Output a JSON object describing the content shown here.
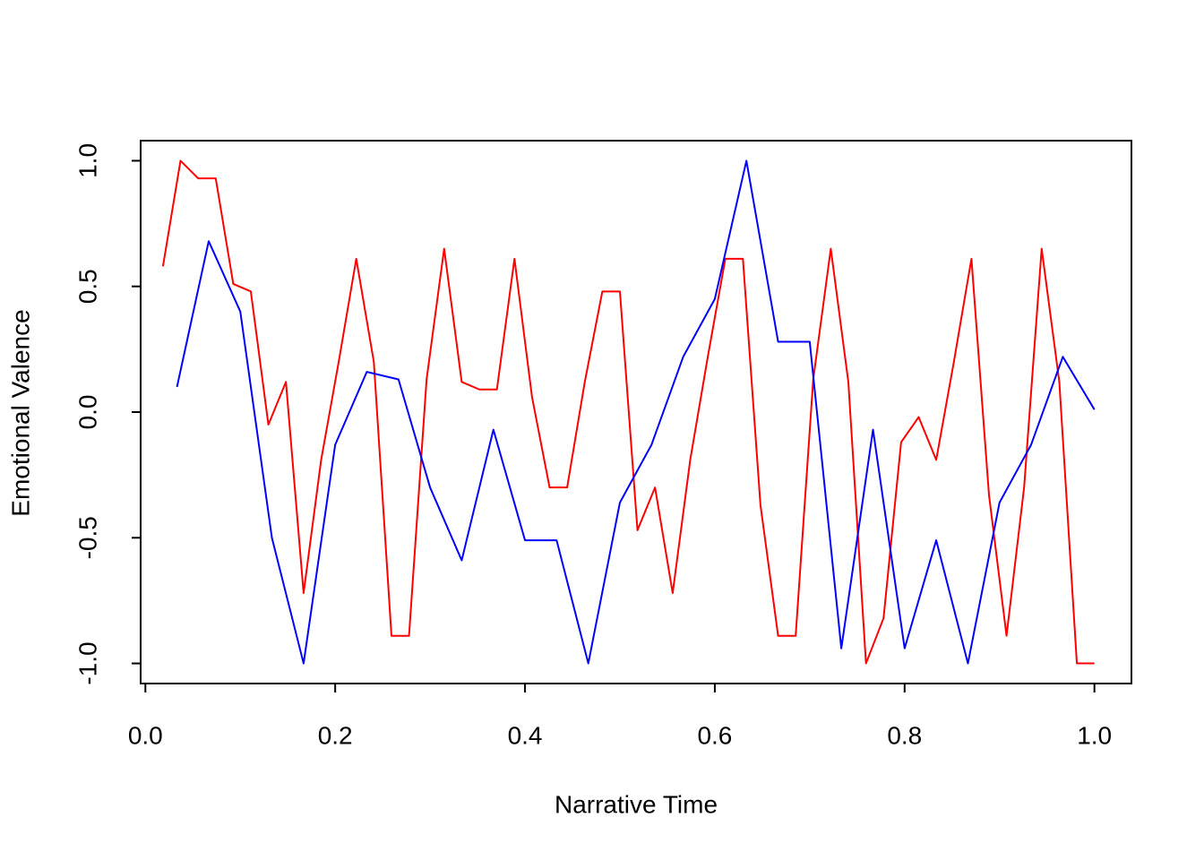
{
  "chart_data": {
    "type": "line",
    "xlabel": "Narrative Time",
    "ylabel": "Emotional Valence",
    "xlim": [
      -0.005,
      1.039
    ],
    "ylim": [
      -1.08,
      1.08
    ],
    "xticks": [
      {
        "value": 0,
        "label": "0.0"
      },
      {
        "value": 0.2,
        "label": "0.2"
      },
      {
        "value": 0.4,
        "label": "0.4"
      },
      {
        "value": 0.6,
        "label": "0.6"
      },
      {
        "value": 0.8,
        "label": "0.8"
      },
      {
        "value": 1,
        "label": "1.0"
      }
    ],
    "yticks": [
      {
        "value": -1,
        "label": "-1.0"
      },
      {
        "value": -0.5,
        "label": "-0.5"
      },
      {
        "value": 0,
        "label": "0.0"
      },
      {
        "value": 0.5,
        "label": "0.5"
      },
      {
        "value": 1,
        "label": "1.0"
      }
    ],
    "grid": false,
    "series": [
      {
        "color": "#ff0000",
        "x": [
          0.0185,
          0.037,
          0.0556,
          0.0741,
          0.0926,
          0.1111,
          0.1296,
          0.1481,
          0.1667,
          0.1852,
          0.2037,
          0.2222,
          0.2407,
          0.2593,
          0.2778,
          0.2963,
          0.3148,
          0.3333,
          0.3519,
          0.3704,
          0.3889,
          0.4074,
          0.4259,
          0.4444,
          0.463,
          0.4815,
          0.5,
          0.5185,
          0.537,
          0.5556,
          0.5741,
          0.5926,
          0.6111,
          0.6296,
          0.6481,
          0.6667,
          0.6852,
          0.7037,
          0.7222,
          0.7407,
          0.7593,
          0.7778,
          0.7963,
          0.8148,
          0.8333,
          0.8519,
          0.8704,
          0.8889,
          0.9074,
          0.9259,
          0.9444,
          0.963,
          0.9815,
          1.0
        ],
        "values": [
          0.58,
          1.0,
          0.93,
          0.93,
          0.51,
          0.48,
          -0.05,
          0.12,
          -0.72,
          -0.19,
          0.2,
          0.61,
          0.2,
          -0.89,
          -0.89,
          0.13,
          0.65,
          0.12,
          0.09,
          0.09,
          0.61,
          0.06,
          -0.3,
          -0.3,
          0.12,
          0.48,
          0.48,
          -0.47,
          -0.3,
          -0.72,
          -0.19,
          0.22,
          0.61,
          0.61,
          -0.37,
          -0.89,
          -0.89,
          0.13,
          0.65,
          0.12,
          -1.0,
          -0.82,
          -0.12,
          -0.02,
          -0.19,
          0.2,
          0.61,
          -0.33,
          -0.89,
          -0.3,
          0.65,
          0.12,
          -1.0,
          -1.0
        ]
      },
      {
        "color": "#0000ff",
        "x": [
          0.0333,
          0.0667,
          0.1,
          0.1333,
          0.1667,
          0.2,
          0.2333,
          0.2667,
          0.3,
          0.3333,
          0.3667,
          0.4,
          0.4333,
          0.4667,
          0.5,
          0.5333,
          0.5667,
          0.6,
          0.6333,
          0.6667,
          0.7,
          0.7333,
          0.7667,
          0.8,
          0.8333,
          0.8667,
          0.9,
          0.9333,
          0.9667,
          1.0
        ],
        "values": [
          0.1,
          0.68,
          0.4,
          -0.5,
          -1.0,
          -0.13,
          0.16,
          0.13,
          -0.3,
          -0.59,
          -0.07,
          -0.51,
          -0.51,
          -1.0,
          -0.36,
          -0.13,
          0.22,
          0.45,
          1.0,
          0.28,
          0.28,
          -0.94,
          -0.07,
          -0.94,
          -0.51,
          -1.0,
          -0.36,
          -0.13,
          0.22,
          0.01
        ]
      }
    ]
  }
}
